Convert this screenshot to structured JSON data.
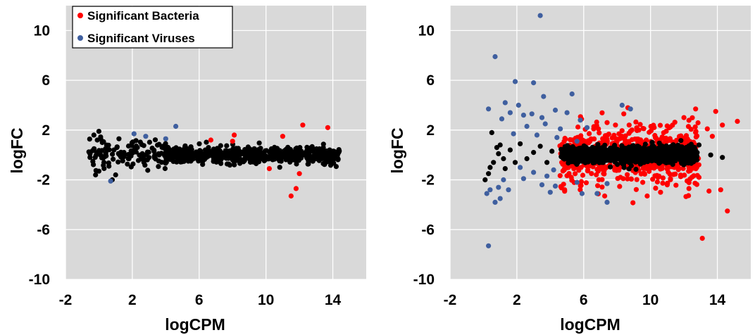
{
  "colors": {
    "plot_background": "#d9d9d9",
    "grid": "#ffffff",
    "bacteria": "#ff0000",
    "viruses": "#3f5f9f",
    "nonsignificant": "#000000"
  },
  "legend": {
    "items": [
      {
        "label": "Significant Bacteria",
        "color": "#ff0000"
      },
      {
        "label": "Significant Viruses",
        "color": "#3f5f9f"
      }
    ],
    "placement": "top-left of left panel"
  },
  "chart_data": [
    {
      "type": "scatter",
      "panel": "left",
      "xlabel": "logCPM",
      "ylabel": "logFC",
      "xlim": [
        -2,
        16
      ],
      "ylim": [
        -10,
        12
      ],
      "xticks": [
        "-2",
        "2",
        "6",
        "10",
        "14"
      ],
      "yticks": [
        "10",
        "6",
        "2",
        "-2",
        "-6",
        "-10"
      ],
      "grid": true,
      "series": [
        {
          "name": "Significant Bacteria",
          "color": "#ff0000",
          "points": [
            [
              6.7,
              1.2
            ],
            [
              8.1,
              1.6
            ],
            [
              8.0,
              1.1
            ],
            [
              11.0,
              1.5
            ],
            [
              12.2,
              2.4
            ],
            [
              13.7,
              2.2
            ],
            [
              10.2,
              -1.1
            ],
            [
              12.0,
              -1.5
            ],
            [
              11.8,
              -2.7
            ],
            [
              11.5,
              -3.3
            ]
          ]
        },
        {
          "name": "Significant Viruses",
          "color": "#3f5f9f",
          "points": [
            [
              2.1,
              1.7
            ],
            [
              2.8,
              1.5
            ],
            [
              4.0,
              1.3
            ],
            [
              4.6,
              2.3
            ],
            [
              0.7,
              -2.1
            ]
          ]
        },
        {
          "name": "",
          "color": "#000000",
          "cluster": {
            "x_range": [
              -0.6,
              14.4
            ],
            "core_x": [
              4.0,
              14.4
            ],
            "core_y_spread": 0.6,
            "tail_y_spread": 0.9,
            "count": 700
          },
          "points": [
            [
              -0.3,
              1.6
            ],
            [
              0.0,
              1.9
            ],
            [
              -0.1,
              1.2
            ],
            [
              0.2,
              1.0
            ],
            [
              0.4,
              0.5
            ],
            [
              0.1,
              0.0
            ],
            [
              0.3,
              -0.6
            ],
            [
              0.0,
              -1.3
            ],
            [
              -0.2,
              -1.6
            ],
            [
              0.6,
              -0.9
            ],
            [
              0.9,
              0.4
            ],
            [
              1.2,
              1.3
            ],
            [
              1.5,
              0.2
            ],
            [
              1.8,
              -0.3
            ],
            [
              2.3,
              0.6
            ],
            [
              2.6,
              0.1
            ],
            [
              3.0,
              -0.2
            ],
            [
              3.3,
              0.3
            ],
            [
              3.6,
              0.0
            ],
            [
              1.0,
              -1.6
            ],
            [
              0.8,
              -2.0
            ],
            [
              13.4,
              0.0
            ],
            [
              14.2,
              -0.2
            ]
          ]
        }
      ]
    },
    {
      "type": "scatter",
      "panel": "right",
      "xlabel": "logCPM",
      "ylabel": "logFC",
      "xlim": [
        -2,
        16
      ],
      "ylim": [
        -10,
        12
      ],
      "xticks": [
        "-2",
        "2",
        "6",
        "10",
        "14"
      ],
      "yticks": [
        "10",
        "6",
        "2",
        "-2",
        "-6",
        "-10"
      ],
      "grid": true,
      "series": [
        {
          "name": "Significant Bacteria",
          "color": "#ff0000",
          "cluster": {
            "x_range": [
              4.5,
              13.0
            ],
            "y_spread": 1.6,
            "count": 500
          },
          "points": [
            [
              12.0,
              3.0
            ],
            [
              12.7,
              3.7
            ],
            [
              13.4,
              2.1
            ],
            [
              13.9,
              3.5
            ],
            [
              14.3,
              2.4
            ],
            [
              15.2,
              2.7
            ],
            [
              13.7,
              1.5
            ],
            [
              12.9,
              -1.8
            ],
            [
              12.3,
              -2.7
            ],
            [
              13.5,
              -2.9
            ],
            [
              14.2,
              -2.8
            ],
            [
              14.6,
              -4.5
            ],
            [
              13.1,
              -6.7
            ],
            [
              11.0,
              -2.4
            ],
            [
              9.8,
              -3.3
            ],
            [
              10.6,
              -3.0
            ],
            [
              8.4,
              3.3
            ],
            [
              7.4,
              2.6
            ],
            [
              6.6,
              2.1
            ],
            [
              7.9,
              2.4
            ],
            [
              9.3,
              2.0
            ],
            [
              8.8,
              1.9
            ]
          ]
        },
        {
          "name": "Significant Viruses",
          "color": "#3f5f9f",
          "points": [
            [
              3.4,
              11.2
            ],
            [
              0.7,
              7.9
            ],
            [
              1.9,
              5.9
            ],
            [
              3.0,
              5.8
            ],
            [
              3.6,
              4.7
            ],
            [
              5.3,
              4.9
            ],
            [
              1.3,
              4.2
            ],
            [
              2.1,
              4.0
            ],
            [
              0.3,
              3.7
            ],
            [
              2.4,
              3.2
            ],
            [
              2.9,
              3.3
            ],
            [
              3.5,
              3.0
            ],
            [
              4.3,
              3.6
            ],
            [
              5.0,
              3.4
            ],
            [
              1.6,
              3.4
            ],
            [
              1.1,
              2.9
            ],
            [
              2.6,
              2.3
            ],
            [
              3.7,
              2.5
            ],
            [
              4.6,
              2.1
            ],
            [
              5.8,
              2.8
            ],
            [
              6.2,
              2.2
            ],
            [
              1.8,
              1.7
            ],
            [
              3.2,
              1.6
            ],
            [
              4.4,
              1.4
            ],
            [
              5.6,
              1.1
            ],
            [
              8.3,
              4.0
            ],
            [
              8.8,
              3.7
            ],
            [
              2.2,
              -1.0
            ],
            [
              3.0,
              -1.4
            ],
            [
              3.8,
              -1.7
            ],
            [
              4.2,
              -1.2
            ],
            [
              1.2,
              -2.0
            ],
            [
              2.4,
              -1.9
            ],
            [
              0.9,
              -2.6
            ],
            [
              1.5,
              -2.8
            ],
            [
              0.4,
              -2.8
            ],
            [
              0.2,
              -3.1
            ],
            [
              1.0,
              -3.5
            ],
            [
              0.7,
              -3.8
            ],
            [
              3.5,
              -2.4
            ],
            [
              4.3,
              -2.5
            ],
            [
              5.6,
              -2.2
            ],
            [
              7.4,
              -2.3
            ],
            [
              6.8,
              -3.1
            ],
            [
              7.4,
              -3.8
            ],
            [
              5.9,
              -3.1
            ],
            [
              4.0,
              -3.0
            ],
            [
              0.3,
              -7.3
            ]
          ]
        },
        {
          "name": "",
          "color": "#000000",
          "cluster": {
            "x_range": [
              4.6,
              12.8
            ],
            "y_spread": 0.8,
            "count": 900
          },
          "points": [
            [
              0.1,
              -2.0
            ],
            [
              0.3,
              -1.5
            ],
            [
              0.4,
              -1.0
            ],
            [
              0.6,
              -0.6
            ],
            [
              0.9,
              0.1
            ],
            [
              1.2,
              -0.3
            ],
            [
              1.6,
              0.4
            ],
            [
              1.0,
              0.8
            ],
            [
              0.5,
              1.8
            ],
            [
              0.8,
              0.6
            ],
            [
              1.9,
              -0.6
            ],
            [
              2.2,
              0.9
            ],
            [
              2.6,
              -0.3
            ],
            [
              3.0,
              0.2
            ],
            [
              3.4,
              0.7
            ],
            [
              3.8,
              -0.6
            ],
            [
              4.1,
              0.3
            ],
            [
              1.3,
              -1.1
            ],
            [
              13.6,
              0.0
            ],
            [
              14.3,
              -0.2
            ],
            [
              12.9,
              0.8
            ]
          ]
        }
      ]
    }
  ]
}
